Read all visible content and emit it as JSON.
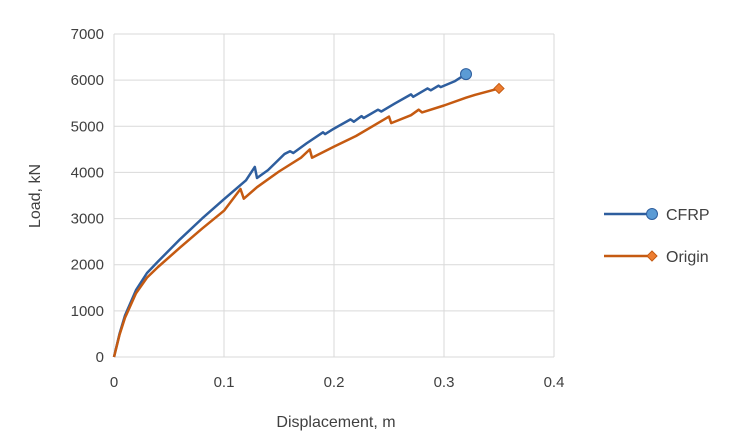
{
  "chart_data": {
    "type": "line",
    "title": "",
    "xlabel": "Displacement, m",
    "ylabel": "Load, kN",
    "xlim": [
      0,
      0.4
    ],
    "ylim": [
      0,
      7000
    ],
    "xticks": [
      "0",
      "0.1",
      "0.2",
      "0.3",
      "0.4"
    ],
    "yticks": [
      "0",
      "1000",
      "2000",
      "3000",
      "4000",
      "5000",
      "6000",
      "7000"
    ],
    "grid": true,
    "legend_position": "right",
    "series": [
      {
        "name": "CFRP",
        "color": "#2E5E9E",
        "marker": "circle",
        "marker_color": "#5B9BD5",
        "x": [
          0,
          0.005,
          0.01,
          0.02,
          0.03,
          0.04,
          0.06,
          0.08,
          0.1,
          0.12,
          0.128,
          0.13,
          0.14,
          0.155,
          0.16,
          0.163,
          0.175,
          0.19,
          0.192,
          0.2,
          0.215,
          0.218,
          0.225,
          0.227,
          0.24,
          0.243,
          0.255,
          0.27,
          0.272,
          0.285,
          0.288,
          0.295,
          0.297,
          0.31,
          0.32
        ],
        "y": [
          0,
          500,
          900,
          1450,
          1820,
          2070,
          2550,
          3000,
          3420,
          3830,
          4120,
          3880,
          4050,
          4400,
          4460,
          4420,
          4630,
          4870,
          4830,
          4950,
          5150,
          5100,
          5220,
          5180,
          5360,
          5320,
          5490,
          5690,
          5640,
          5820,
          5780,
          5880,
          5850,
          5980,
          6130
        ]
      },
      {
        "name": "Origin",
        "color": "#C55A11",
        "marker": "diamond",
        "marker_color": "#ED7D31",
        "x": [
          0,
          0.005,
          0.01,
          0.02,
          0.03,
          0.04,
          0.06,
          0.08,
          0.1,
          0.115,
          0.118,
          0.13,
          0.15,
          0.17,
          0.178,
          0.18,
          0.2,
          0.22,
          0.25,
          0.252,
          0.27,
          0.277,
          0.28,
          0.3,
          0.32,
          0.328,
          0.35
        ],
        "y": [
          0,
          480,
          850,
          1380,
          1720,
          1950,
          2370,
          2780,
          3170,
          3640,
          3430,
          3680,
          4020,
          4320,
          4500,
          4320,
          4560,
          4790,
          5210,
          5070,
          5240,
          5360,
          5300,
          5450,
          5620,
          5680,
          5820
        ]
      }
    ]
  }
}
